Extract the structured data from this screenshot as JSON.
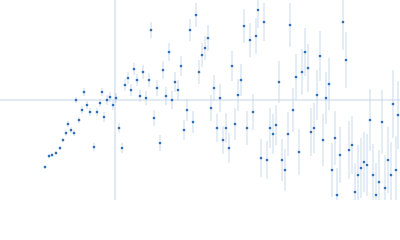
{
  "chart_data": {
    "type": "scatter",
    "xlim": [
      -115,
      285
    ],
    "ylim": [
      -100,
      100
    ],
    "axis_lines": true,
    "color": "#2f6fb8",
    "error_color": "#bccfe9",
    "axis_color": "#c9d5e8",
    "x": [
      -70,
      -66,
      -63,
      -59,
      -55,
      -52,
      -49,
      -47,
      -44,
      -41,
      -39,
      -36,
      -33,
      -31,
      -28,
      -25,
      -21,
      -18,
      -15,
      -13,
      -11,
      -8,
      -5,
      -2,
      1,
      4,
      7,
      10,
      13,
      16,
      19,
      22,
      25,
      28,
      31,
      34,
      36,
      39,
      42,
      45,
      48,
      51,
      54,
      57,
      60,
      63,
      66,
      69,
      72,
      75,
      78,
      81,
      84,
      87,
      90,
      93,
      96,
      99,
      102,
      105,
      108,
      111,
      114,
      117,
      120,
      123,
      126,
      129,
      132,
      135,
      138,
      141,
      143,
      146,
      149,
      152,
      155,
      158,
      161,
      164,
      167,
      170,
      173,
      175,
      178,
      181,
      184,
      187,
      190,
      193,
      196,
      199,
      202,
      205,
      208,
      211,
      214,
      217,
      220,
      222,
      225,
      228,
      231,
      234,
      237,
      240,
      243,
      246,
      249,
      252,
      255,
      258,
      261,
      264,
      267,
      270,
      273,
      276,
      278,
      281,
      283
    ],
    "values": [
      -67,
      -56,
      -55,
      -53,
      -48,
      -40,
      -33,
      -24,
      -30,
      -33,
      0,
      -20,
      -10,
      8,
      -5,
      -12,
      -47,
      -12,
      -3,
      8,
      -17,
      0,
      3,
      -5,
      2,
      -28,
      -48,
      15,
      22,
      10,
      31,
      20,
      4,
      28,
      2,
      20,
      70,
      -18,
      12,
      -43,
      30,
      4,
      48,
      0,
      18,
      10,
      34,
      -30,
      -10,
      70,
      -22,
      85,
      28,
      45,
      52,
      62,
      -8,
      12,
      -28,
      2,
      -40,
      -28,
      -48,
      34,
      -24,
      5,
      20,
      74,
      -28,
      60,
      -12,
      64,
      90,
      -58,
      78,
      -60,
      -28,
      -34,
      -25,
      18,
      -60,
      -70,
      -34,
      75,
      -10,
      23,
      -52,
      28,
      48,
      32,
      -32,
      -28,
      5,
      44,
      -40,
      2,
      16,
      -70,
      -38,
      -95,
      -55,
      78,
      40,
      -50,
      -45,
      -92,
      -75,
      -68,
      -62,
      -65,
      -20,
      -75,
      -95,
      -82,
      -22,
      -88,
      -60,
      -75,
      -4,
      -70,
      -15
    ],
    "errors": [
      2,
      2,
      2,
      2,
      2,
      2,
      3,
      3,
      3,
      3,
      3,
      3,
      4,
      4,
      4,
      4,
      4,
      4,
      4,
      4,
      5,
      5,
      5,
      5,
      5,
      5,
      5,
      6,
      6,
      6,
      6,
      6,
      6,
      7,
      7,
      7,
      8,
      8,
      8,
      8,
      9,
      9,
      9,
      9,
      10,
      10,
      10,
      10,
      11,
      11,
      11,
      12,
      12,
      12,
      12,
      13,
      13,
      13,
      14,
      14,
      14,
      15,
      15,
      15,
      16,
      16,
      16,
      17,
      17,
      17,
      18,
      18,
      18,
      19,
      19,
      19,
      20,
      20,
      20,
      21,
      21,
      21,
      22,
      22,
      22,
      23,
      23,
      23,
      24,
      24,
      24,
      25,
      25,
      25,
      26,
      26,
      26,
      27,
      27,
      27,
      28,
      28,
      28,
      29,
      29,
      29,
      30,
      30,
      30,
      31,
      31,
      31,
      32,
      32,
      32,
      33,
      33,
      33,
      34,
      34,
      34
    ]
  }
}
